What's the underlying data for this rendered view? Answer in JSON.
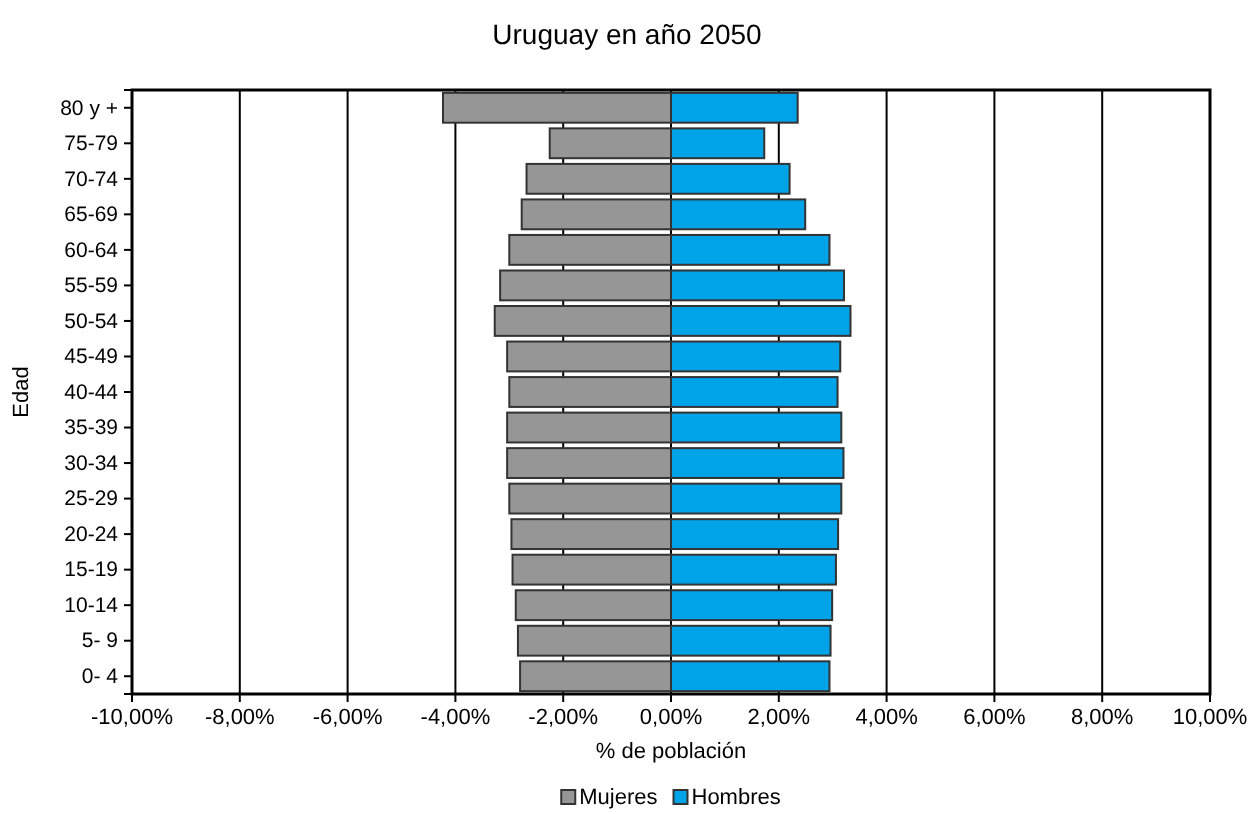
{
  "chart_data": {
    "type": "bar",
    "title": "Uruguay en año 2050",
    "orientation": "horizontal",
    "stacked": true,
    "xlabel": "% de población",
    "ylabel": "Edad",
    "categories": [
      "80 y +",
      "75-79",
      "70-74",
      "65-69",
      "60-64",
      "55-59",
      "50-54",
      "45-49",
      "40-44",
      "35-39",
      "30-34",
      "25-29",
      "20-24",
      "15-19",
      "10-14",
      "5- 9",
      "0- 4"
    ],
    "series": [
      {
        "name": "Mujeres",
        "color": "#969696",
        "values": [
          -4.23,
          -2.25,
          -2.68,
          -2.77,
          -3.0,
          -3.17,
          -3.27,
          -3.04,
          -3.0,
          -3.04,
          -3.04,
          -3.0,
          -2.96,
          -2.94,
          -2.88,
          -2.84,
          -2.8
        ]
      },
      {
        "name": "Hombres",
        "color": "#00a2e8",
        "values": [
          2.35,
          1.73,
          2.2,
          2.49,
          2.94,
          3.21,
          3.33,
          3.14,
          3.09,
          3.16,
          3.2,
          3.16,
          3.1,
          3.06,
          2.99,
          2.96,
          2.94
        ]
      }
    ],
    "xlim": [
      -10,
      10
    ],
    "xticks": [
      {
        "value": -10,
        "label": "-10,00%"
      },
      {
        "value": -8,
        "label": "-8,00%"
      },
      {
        "value": -6,
        "label": "-6,00%"
      },
      {
        "value": -4,
        "label": "-4,00%"
      },
      {
        "value": -2,
        "label": "-2,00%"
      },
      {
        "value": 0,
        "label": "0,00%"
      },
      {
        "value": 2,
        "label": "2,00%"
      },
      {
        "value": 4,
        "label": "4,00%"
      },
      {
        "value": 6,
        "label": "6,00%"
      },
      {
        "value": 8,
        "label": "8,00%"
      },
      {
        "value": 10,
        "label": "10,00%"
      }
    ],
    "grid": "x",
    "legend": "bottom"
  }
}
